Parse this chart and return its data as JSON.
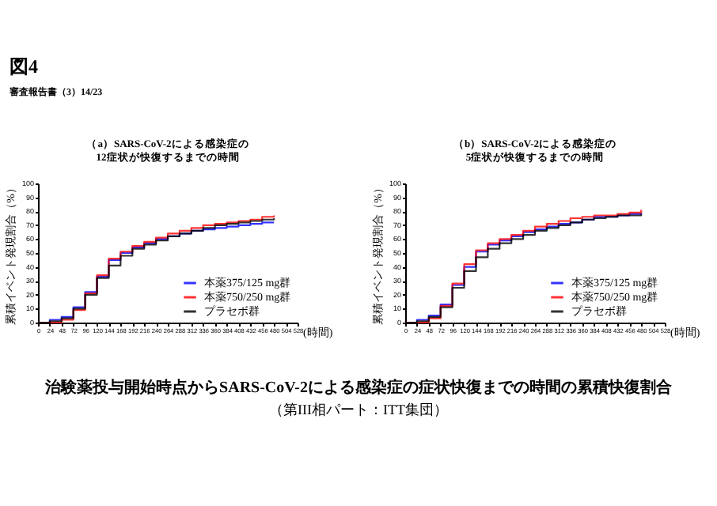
{
  "chart_data": [
    {
      "type": "step",
      "title": "（a）SARS-CoV-2による感染症の\n12症状が快復するまでの時間",
      "xlabel": "(時間)",
      "ylabel": "累積イベント発現割合（%）",
      "xlim": [
        0,
        528
      ],
      "ylim": [
        0,
        100
      ],
      "xticks": [
        0,
        24,
        48,
        72,
        96,
        120,
        144,
        168,
        192,
        216,
        240,
        264,
        288,
        312,
        336,
        360,
        384,
        408,
        432,
        456,
        480,
        504,
        528
      ],
      "yticks": [
        0,
        10,
        20,
        30,
        40,
        50,
        60,
        70,
        80,
        90,
        100
      ],
      "legend": "bottom right",
      "grid": false,
      "annotations": [
        "図4",
        "審査報告書（3）14/23",
        "治験薬投与開始時点からSARS-CoV-2による感染症の症状快復までの時間の累積快復割合",
        "（第III相パート：ITT集団）"
      ],
      "x": [
        0,
        24,
        48,
        72,
        96,
        120,
        144,
        168,
        192,
        216,
        240,
        264,
        288,
        312,
        336,
        360,
        384,
        408,
        432,
        456,
        480
      ],
      "series": [
        {
          "name": "本薬375/125 mg群",
          "color": "#0000ff",
          "values": [
            0,
            2,
            4,
            11,
            22,
            33,
            45,
            50,
            54,
            57,
            60,
            62,
            64,
            66,
            67,
            68,
            69,
            70,
            71,
            72,
            72
          ]
        },
        {
          "name": "本薬750/250 mg群",
          "color": "#ff0000",
          "values": [
            0,
            0,
            2,
            9,
            21,
            34,
            46,
            51,
            55,
            58,
            61,
            64,
            66,
            68,
            70,
            71,
            72,
            73,
            74,
            76,
            77
          ]
        },
        {
          "name": "プラセボ群",
          "color": "#000000",
          "values": [
            0,
            1,
            3,
            10,
            20,
            32,
            41,
            48,
            53,
            56,
            59,
            62,
            64,
            66,
            68,
            70,
            71,
            72,
            73,
            74,
            75
          ]
        }
      ]
    },
    {
      "type": "step",
      "title": "（b）SARS-CoV-2による感染症の\n5症状が快復するまでの時間",
      "xlabel": "(時間)",
      "ylabel": "累積イベント発現割合（%）",
      "xlim": [
        0,
        528
      ],
      "ylim": [
        0,
        100
      ],
      "xticks": [
        0,
        24,
        48,
        72,
        96,
        120,
        144,
        168,
        192,
        216,
        240,
        264,
        288,
        312,
        336,
        360,
        384,
        408,
        432,
        456,
        480,
        504,
        528
      ],
      "yticks": [
        0,
        10,
        20,
        30,
        40,
        50,
        60,
        70,
        80,
        90,
        100
      ],
      "legend": "bottom right",
      "grid": false,
      "x": [
        0,
        24,
        48,
        72,
        96,
        120,
        144,
        168,
        192,
        216,
        240,
        264,
        288,
        312,
        336,
        360,
        384,
        408,
        432,
        456,
        480
      ],
      "series": [
        {
          "name": "本薬375/125 mg群",
          "color": "#0000ff",
          "values": [
            0,
            2,
            5,
            13,
            27,
            40,
            51,
            56,
            59,
            62,
            65,
            67,
            69,
            71,
            72,
            74,
            76,
            76,
            77,
            78,
            79
          ]
        },
        {
          "name": "本薬750/250 mg群",
          "color": "#ff0000",
          "values": [
            0,
            0,
            3,
            12,
            28,
            42,
            52,
            57,
            60,
            63,
            66,
            69,
            71,
            73,
            75,
            76,
            77,
            77,
            78,
            79,
            81
          ]
        },
        {
          "name": "プラセボ群",
          "color": "#000000",
          "values": [
            0,
            1,
            4,
            11,
            25,
            37,
            47,
            53,
            57,
            60,
            63,
            66,
            68,
            70,
            72,
            74,
            75,
            76,
            77,
            77,
            78
          ]
        }
      ]
    }
  ]
}
